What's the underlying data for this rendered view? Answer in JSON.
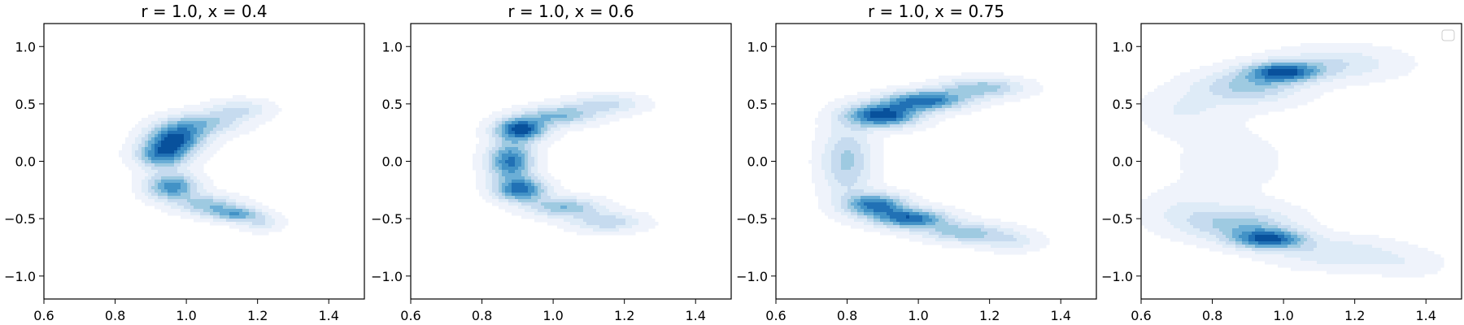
{
  "chart_data": [
    {
      "type": "heatmap",
      "subtype": "kde-filled-contour",
      "title": "r = 1.0, x = 0.4",
      "xlabel": "",
      "ylabel": "",
      "xlim": [
        0.6,
        1.5
      ],
      "ylim": [
        -1.2,
        1.2
      ],
      "xticks": [
        "0.6",
        "0.8",
        "1.0",
        "1.2",
        "1.4"
      ],
      "yticks": [
        "−1.0",
        "−0.5",
        "0.0",
        "0.5",
        "1.0"
      ],
      "grid": false,
      "legend": "none",
      "colormap": "Blues",
      "blobs": [
        {
          "x": 0.97,
          "y": 0.2,
          "sx": 0.055,
          "sy": 0.09,
          "w": 1.0
        },
        {
          "x": 0.93,
          "y": 0.05,
          "sx": 0.05,
          "sy": 0.08,
          "w": 0.8
        },
        {
          "x": 0.96,
          "y": -0.22,
          "sx": 0.05,
          "sy": 0.08,
          "w": 0.85
        },
        {
          "x": 1.05,
          "y": 0.33,
          "sx": 0.07,
          "sy": 0.07,
          "w": 0.5
        },
        {
          "x": 1.15,
          "y": 0.45,
          "sx": 0.06,
          "sy": 0.06,
          "w": 0.35
        },
        {
          "x": 1.06,
          "y": -0.38,
          "sx": 0.06,
          "sy": 0.06,
          "w": 0.55
        },
        {
          "x": 1.14,
          "y": -0.46,
          "sx": 0.05,
          "sy": 0.045,
          "w": 0.65
        },
        {
          "x": 1.21,
          "y": -0.54,
          "sx": 0.04,
          "sy": 0.05,
          "w": 0.3
        }
      ]
    },
    {
      "type": "heatmap",
      "subtype": "kde-filled-contour",
      "title": "r = 1.0, x = 0.6",
      "xlabel": "",
      "ylabel": "",
      "xlim": [
        0.6,
        1.5
      ],
      "ylim": [
        -1.2,
        1.2
      ],
      "xticks": [
        "0.6",
        "0.8",
        "1.0",
        "1.2",
        "1.4"
      ],
      "yticks": [
        "−1.0",
        "−0.5",
        "0.0",
        "0.5",
        "1.0"
      ],
      "grid": false,
      "legend": "none",
      "colormap": "Blues",
      "blobs": [
        {
          "x": 0.91,
          "y": 0.28,
          "sx": 0.05,
          "sy": 0.07,
          "w": 1.0
        },
        {
          "x": 0.88,
          "y": 0.0,
          "sx": 0.045,
          "sy": 0.12,
          "w": 0.85
        },
        {
          "x": 0.91,
          "y": -0.25,
          "sx": 0.05,
          "sy": 0.07,
          "w": 0.85
        },
        {
          "x": 1.02,
          "y": 0.4,
          "sx": 0.07,
          "sy": 0.06,
          "w": 0.55
        },
        {
          "x": 1.15,
          "y": 0.5,
          "sx": 0.07,
          "sy": 0.06,
          "w": 0.35
        },
        {
          "x": 1.03,
          "y": -0.4,
          "sx": 0.07,
          "sy": 0.06,
          "w": 0.55
        },
        {
          "x": 1.15,
          "y": -0.53,
          "sx": 0.07,
          "sy": 0.06,
          "w": 0.4
        }
      ]
    },
    {
      "type": "heatmap",
      "subtype": "kde-filled-contour",
      "title": "r = 1.0, x = 0.75",
      "xlabel": "",
      "ylabel": "",
      "xlim": [
        0.6,
        1.5
      ],
      "ylim": [
        -1.2,
        1.2
      ],
      "xticks": [
        "0.6",
        "0.8",
        "1.0",
        "1.2",
        "1.4"
      ],
      "yticks": [
        "−1.0",
        "−0.5",
        "0.0",
        "0.5",
        "1.0"
      ],
      "grid": false,
      "legend": "none",
      "colormap": "Blues",
      "blobs": [
        {
          "x": 0.9,
          "y": 0.4,
          "sx": 0.07,
          "sy": 0.07,
          "w": 1.0
        },
        {
          "x": 1.02,
          "y": 0.53,
          "sx": 0.08,
          "sy": 0.06,
          "w": 0.85
        },
        {
          "x": 1.18,
          "y": 0.64,
          "sx": 0.08,
          "sy": 0.06,
          "w": 0.5
        },
        {
          "x": 0.8,
          "y": 0.0,
          "sx": 0.05,
          "sy": 0.22,
          "w": 0.45
        },
        {
          "x": 0.88,
          "y": -0.38,
          "sx": 0.06,
          "sy": 0.07,
          "w": 0.8
        },
        {
          "x": 0.98,
          "y": -0.5,
          "sx": 0.07,
          "sy": 0.06,
          "w": 0.85
        },
        {
          "x": 1.13,
          "y": -0.62,
          "sx": 0.08,
          "sy": 0.06,
          "w": 0.5
        },
        {
          "x": 1.26,
          "y": -0.7,
          "sx": 0.06,
          "sy": 0.06,
          "w": 0.25
        }
      ]
    },
    {
      "type": "heatmap",
      "subtype": "kde-filled-contour",
      "title": "",
      "xlabel": "",
      "ylabel": "",
      "xlim": [
        0.6,
        1.5
      ],
      "ylim": [
        -1.2,
        1.2
      ],
      "xticks": [
        "0.6",
        "0.8",
        "1.0",
        "1.2",
        "1.4"
      ],
      "yticks": [
        "−1.0",
        "−0.5",
        "0.0",
        "0.5",
        "1.0"
      ],
      "grid": false,
      "legend": "top-right (empty)",
      "colormap": "Blues",
      "blobs": [
        {
          "x": 1.0,
          "y": 0.78,
          "sx": 0.07,
          "sy": 0.06,
          "w": 1.0
        },
        {
          "x": 0.9,
          "y": 0.65,
          "sx": 0.1,
          "sy": 0.1,
          "w": 0.55
        },
        {
          "x": 1.15,
          "y": 0.85,
          "sx": 0.12,
          "sy": 0.1,
          "w": 0.35
        },
        {
          "x": 0.72,
          "y": 0.45,
          "sx": 0.08,
          "sy": 0.12,
          "w": 0.2
        },
        {
          "x": 0.96,
          "y": -0.68,
          "sx": 0.07,
          "sy": 0.06,
          "w": 1.0
        },
        {
          "x": 0.88,
          "y": -0.55,
          "sx": 0.1,
          "sy": 0.1,
          "w": 0.55
        },
        {
          "x": 1.15,
          "y": -0.8,
          "sx": 0.12,
          "sy": 0.09,
          "w": 0.35
        },
        {
          "x": 0.72,
          "y": -0.45,
          "sx": 0.08,
          "sy": 0.12,
          "w": 0.2
        },
        {
          "x": 0.85,
          "y": 0.0,
          "sx": 0.16,
          "sy": 0.3,
          "w": 0.09
        },
        {
          "x": 1.35,
          "y": -0.9,
          "sx": 0.07,
          "sy": 0.08,
          "w": 0.15
        }
      ]
    }
  ],
  "colors": {
    "levels": [
      "#eff3fb",
      "#deebf7",
      "#c6dbef",
      "#9ecae1",
      "#6baed6",
      "#4292c6",
      "#2171b5",
      "#08519c"
    ],
    "axes": "#000000",
    "background": "#ffffff"
  }
}
